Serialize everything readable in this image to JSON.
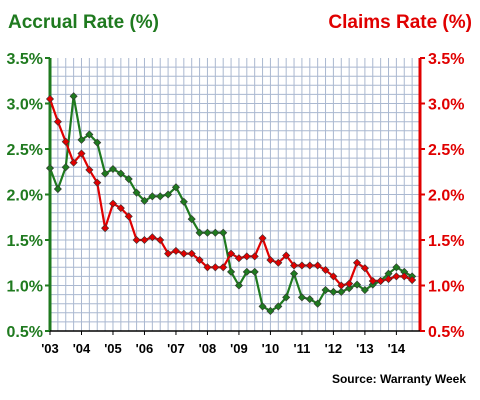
{
  "chart_data": {
    "type": "line",
    "left_axis_title": "Accrual Rate (%)",
    "right_axis_title": "Claims Rate (%)",
    "source": "Source: Warranty Week",
    "colors": {
      "accrual": "#1f7a1f",
      "claims": "#e00000",
      "grid": "#aab8d0"
    },
    "grid": true,
    "y_ticks": [
      "0.5%",
      "1.0%",
      "1.5%",
      "2.0%",
      "2.5%",
      "3.0%",
      "3.5%"
    ],
    "ylim": [
      0.5,
      3.5
    ],
    "xlim": [
      2003,
      2014.75
    ],
    "x_tick_labels": [
      "'03",
      "'04",
      "'05",
      "'06",
      "'07",
      "'08",
      "'09",
      "'10",
      "'11",
      "'12",
      "'13",
      "'14"
    ],
    "series": [
      {
        "name": "Accrual Rate (%)",
        "axis": "left",
        "color": "#1f7a1f",
        "x": [
          2003.0,
          2003.25,
          2003.5,
          2003.75,
          2004.0,
          2004.25,
          2004.5,
          2004.75,
          2005.0,
          2005.25,
          2005.5,
          2005.75,
          2006.0,
          2006.25,
          2006.5,
          2006.75,
          2007.0,
          2007.25,
          2007.5,
          2007.75,
          2008.0,
          2008.25,
          2008.5,
          2008.75,
          2009.0,
          2009.25,
          2009.5,
          2009.75,
          2010.0,
          2010.25,
          2010.5,
          2010.75,
          2011.0,
          2011.25,
          2011.5,
          2011.75,
          2012.0,
          2012.25,
          2012.5,
          2012.75,
          2013.0,
          2013.25,
          2013.5,
          2013.75,
          2014.0,
          2014.25,
          2014.5
        ],
        "values": [
          2.29,
          2.06,
          2.3,
          3.08,
          2.6,
          2.66,
          2.57,
          2.23,
          2.28,
          2.23,
          2.17,
          2.02,
          1.93,
          1.98,
          1.98,
          2.0,
          2.08,
          1.92,
          1.73,
          1.58,
          1.58,
          1.58,
          1.58,
          1.15,
          1.0,
          1.15,
          1.15,
          0.77,
          0.72,
          0.77,
          0.87,
          1.13,
          0.87,
          0.85,
          0.8,
          0.95,
          0.93,
          0.93,
          0.97,
          1.01,
          0.95,
          1.01,
          1.05,
          1.13,
          1.2,
          1.15,
          1.1
        ]
      },
      {
        "name": "Claims Rate (%)",
        "axis": "right",
        "color": "#e00000",
        "x": [
          2003.0,
          2003.25,
          2003.5,
          2003.75,
          2004.0,
          2004.25,
          2004.5,
          2004.75,
          2005.0,
          2005.25,
          2005.5,
          2005.75,
          2006.0,
          2006.25,
          2006.5,
          2006.75,
          2007.0,
          2007.25,
          2007.5,
          2007.75,
          2008.0,
          2008.25,
          2008.5,
          2008.75,
          2009.0,
          2009.25,
          2009.5,
          2009.75,
          2010.0,
          2010.25,
          2010.5,
          2010.75,
          2011.0,
          2011.25,
          2011.5,
          2011.75,
          2012.0,
          2012.25,
          2012.5,
          2012.75,
          2013.0,
          2013.25,
          2013.5,
          2013.75,
          2014.0,
          2014.25,
          2014.5
        ],
        "values": [
          3.05,
          2.8,
          2.58,
          2.35,
          2.45,
          2.27,
          2.13,
          1.63,
          1.9,
          1.85,
          1.76,
          1.5,
          1.5,
          1.53,
          1.5,
          1.35,
          1.38,
          1.35,
          1.35,
          1.28,
          1.2,
          1.2,
          1.2,
          1.35,
          1.3,
          1.32,
          1.32,
          1.52,
          1.28,
          1.25,
          1.33,
          1.22,
          1.22,
          1.22,
          1.22,
          1.17,
          1.1,
          1.0,
          1.02,
          1.25,
          1.19,
          1.05,
          1.05,
          1.07,
          1.1,
          1.1,
          1.06
        ]
      }
    ]
  }
}
